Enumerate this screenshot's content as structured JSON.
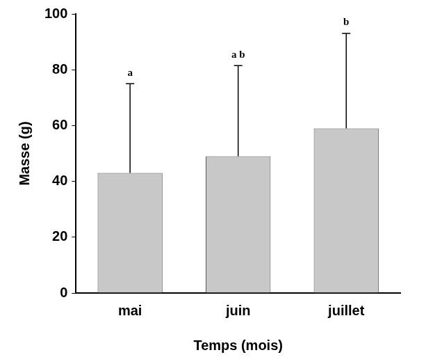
{
  "chart_data": {
    "type": "bar",
    "categories": [
      "mai",
      "juin",
      "juillet"
    ],
    "values": [
      43,
      49,
      59
    ],
    "errors": [
      32,
      32.5,
      34
    ],
    "annotations": [
      "a",
      "a b",
      "b"
    ],
    "xlabel": "Temps (mois)",
    "ylabel": "Masse (g)",
    "color": "#c8c8c8",
    "ylim": [
      0,
      100
    ],
    "yticks": [
      0,
      20,
      40,
      60,
      80,
      100
    ],
    "grid": false
  }
}
